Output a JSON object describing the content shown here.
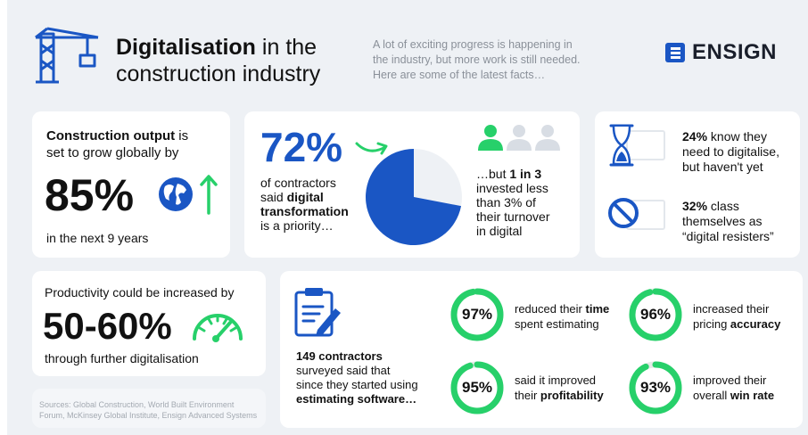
{
  "header": {
    "title_bold": "Digitalisation",
    "title_rest_line1": " in the",
    "title_line2": "construction industry",
    "intro_line1": "A lot of exciting progress is happening in",
    "intro_line2": "the industry, but more work is still needed.",
    "intro_line3": "Here are some of the latest facts…",
    "logo": "ENSIGN"
  },
  "card_output": {
    "heading_bold": "Construction output",
    "heading_rest": " is",
    "heading_line2": "set to grow globally by",
    "value": "85%",
    "footer": "in the next 9 years"
  },
  "card_contractors": {
    "value": "72%",
    "line1": "of contractors",
    "line2_plain": "said ",
    "line2_bold": "digital",
    "line3_bold": "transformation",
    "line4": "is a priority…",
    "pie_value": 72,
    "pie_color": "#1a56c4",
    "pie_rest_color": "#eef1f5",
    "but_line1_plain": "…but ",
    "but_line1_bold": "1 in 3",
    "but_line2": "invested less",
    "but_line3": "than 3% of",
    "but_line4": "their turnover",
    "but_line5": "in digital"
  },
  "card_resisters": {
    "stat1_bold": "24%",
    "stat1_rest": " know they",
    "stat1_line2": "need to digitalise,",
    "stat1_line3": "but haven't yet",
    "stat2_bold": "32%",
    "stat2_rest": " class",
    "stat2_line2": "themselves as",
    "stat2_line3": "“digital resisters”"
  },
  "card_productivity": {
    "heading": "Productivity could be increased by",
    "value": "50-60%",
    "footer": "through further digitalisation"
  },
  "sources": {
    "line1": "Sources: Global Construction, World Built Environment",
    "line2": "Forum, McKinsey Global Institute, Ensign Advanced Systems"
  },
  "card_survey": {
    "line1": "149 contractors",
    "line2": "surveyed said that",
    "line3": "since they started using",
    "line4": "estimating software…",
    "ring_color": "#27d06a",
    "ring_track": "#e6eae8",
    "stats": [
      {
        "value": 97,
        "label": "97%",
        "text1_plain": "reduced their ",
        "text1_bold": "time",
        "text2_plain": "spent estimating",
        "text2_bold": ""
      },
      {
        "value": 96,
        "label": "96%",
        "text1_plain": "increased their",
        "text1_bold": "",
        "text2_plain": "pricing ",
        "text2_bold": "accuracy"
      },
      {
        "value": 95,
        "label": "95%",
        "text1_plain": "said it improved",
        "text1_bold": "",
        "text2_plain": "their ",
        "text2_bold": "profitability"
      },
      {
        "value": 93,
        "label": "93%",
        "text1_plain": "improved their",
        "text1_bold": "",
        "text2_plain": "overall ",
        "text2_bold": "win rate"
      }
    ]
  }
}
